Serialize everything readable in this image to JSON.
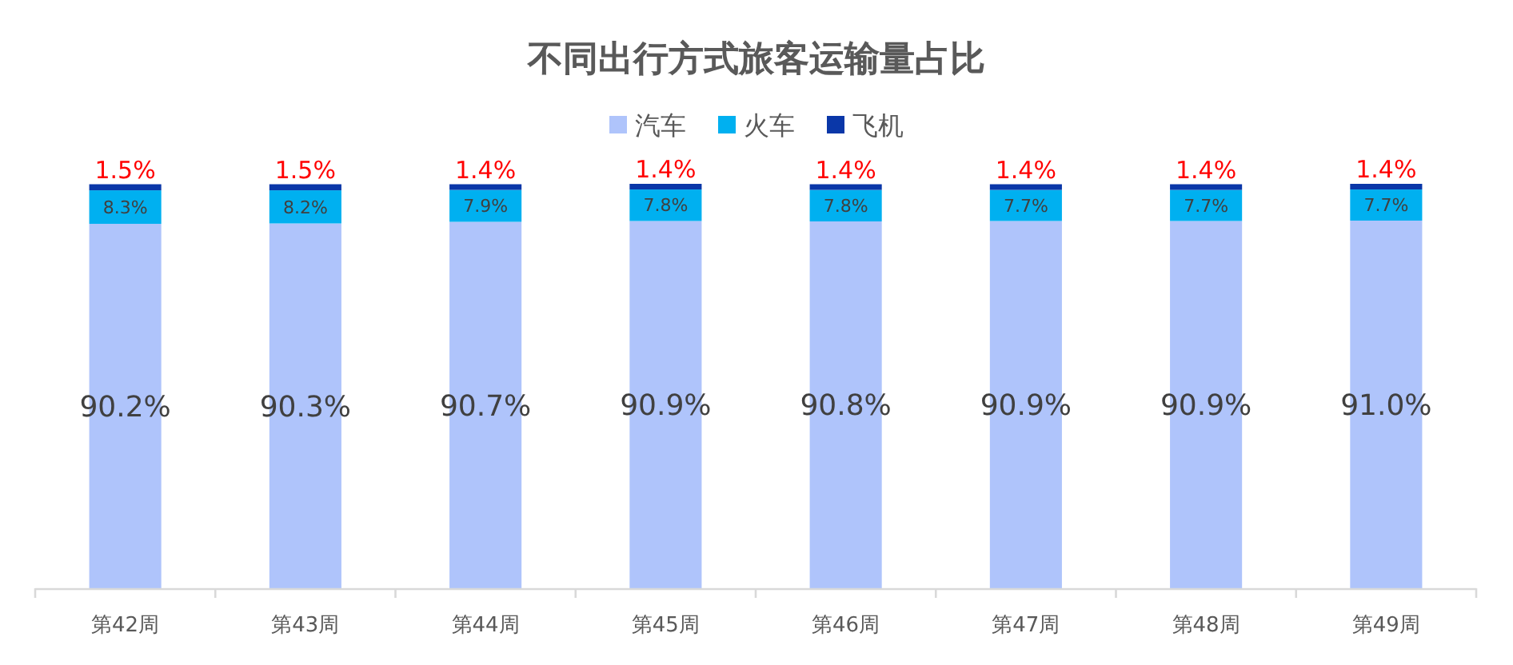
{
  "chart_data": {
    "type": "bar",
    "stacked": true,
    "title": "不同出行方式旅客运输量占比",
    "legend": "top",
    "categories": [
      "第42周",
      "第43周",
      "第44周",
      "第45周",
      "第46周",
      "第47周",
      "第48周",
      "第49周"
    ],
    "series": [
      {
        "name": "汽车",
        "color": "#afc4fb",
        "values": [
          90.2,
          90.3,
          90.7,
          90.9,
          90.8,
          90.9,
          90.9,
          91.0
        ],
        "value_labels": [
          "90.2%",
          "90.3%",
          "90.7%",
          "90.9%",
          "90.8%",
          "90.9%",
          "90.9%",
          "91.0%"
        ]
      },
      {
        "name": "火车",
        "color": "#00b0f0",
        "values": [
          8.3,
          8.2,
          7.9,
          7.8,
          7.8,
          7.7,
          7.7,
          7.7
        ],
        "value_labels": [
          "8.3%",
          "8.2%",
          "7.9%",
          "7.8%",
          "7.8%",
          "7.7%",
          "7.7%",
          "7.7%"
        ]
      },
      {
        "name": "飞机",
        "color": "#0a37a8",
        "values": [
          1.5,
          1.5,
          1.4,
          1.4,
          1.4,
          1.4,
          1.4,
          1.4
        ],
        "value_labels": [
          "1.5%",
          "1.5%",
          "1.4%",
          "1.4%",
          "1.4%",
          "1.4%",
          "1.4%",
          "1.4%"
        ]
      }
    ]
  }
}
